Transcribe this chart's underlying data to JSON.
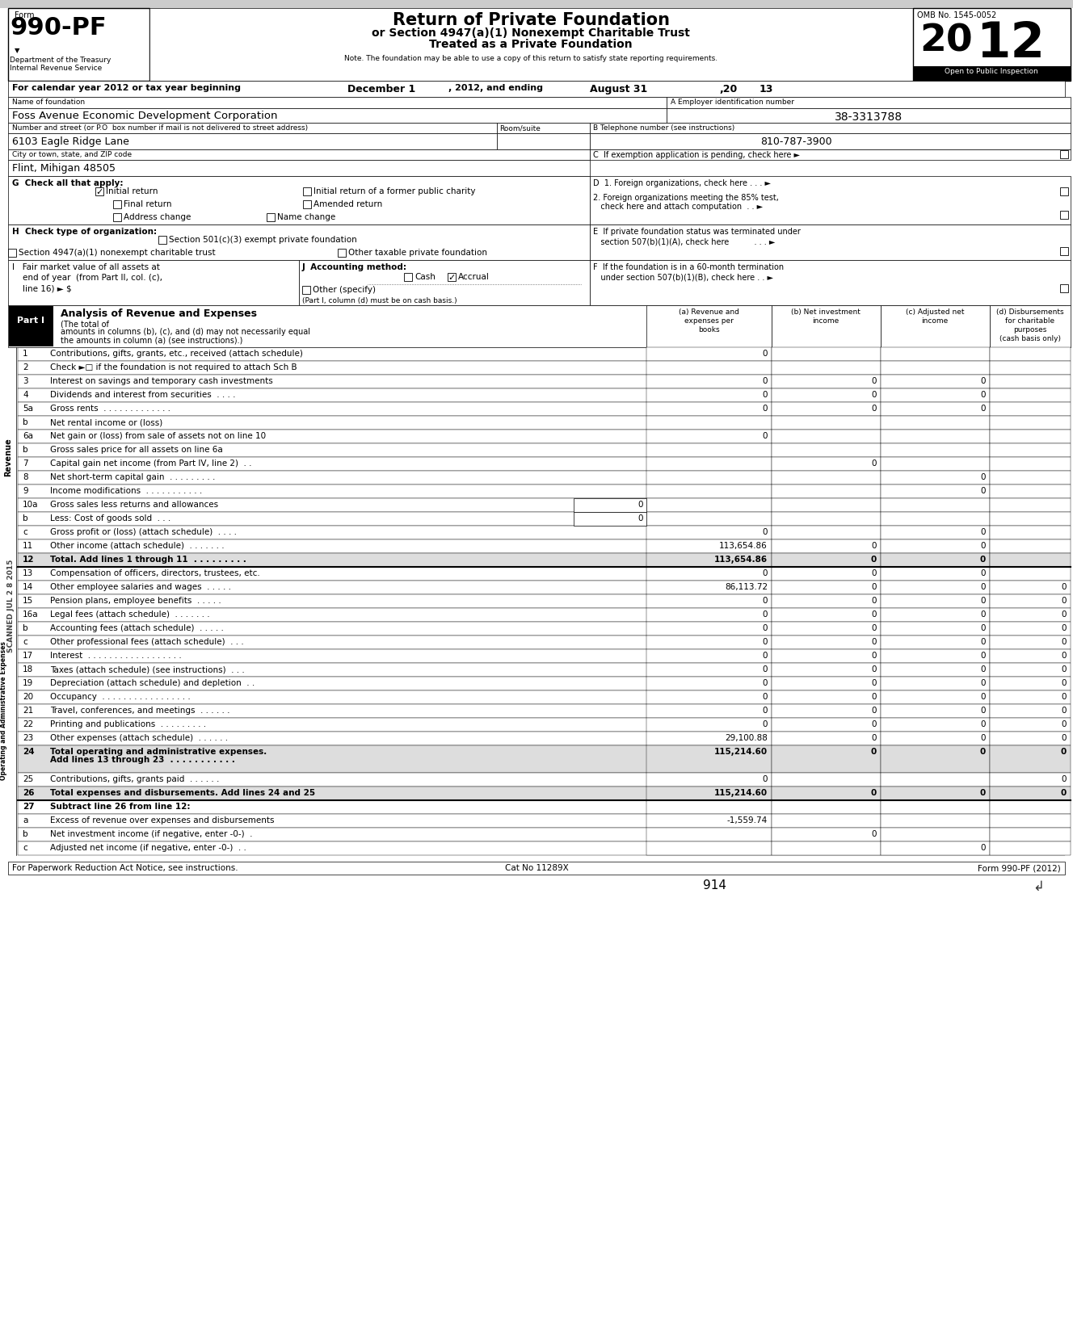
{
  "title": "Return of Private Foundation",
  "subtitle1": "or Section 4947(a)(1) Nonexempt Charitable Trust",
  "subtitle2": "Treated as a Private Foundation",
  "form_number": "990-PF",
  "omb": "OMB No. 1545-0052",
  "open_to_public": "Open to Public Inspection",
  "dept1": "Department of the Treasury",
  "dept2": "Internal Revenue Service",
  "note": "Note. The foundation may be able to use a copy of this return to satisfy state reporting requirements.",
  "cal_year_line": "For calendar year 2012 or tax year beginning",
  "beginning_date": "December 1",
  "ending_label": ", 2012, and ending",
  "ending_date": "August 31",
  "ending_20": ",20",
  "ending_13": "13",
  "name_label": "Name of foundation",
  "ein_label": "A Employer identification number",
  "foundation_name": "Foss Avenue Economic Development Corporation",
  "ein": "38-3313788",
  "street_label": "Number and street (or P.O  box number if mail is not delivered to street address)",
  "room_label": "Room/suite",
  "phone_label": "B Telephone number (see instructions)",
  "street": "6103 Eagle Ridge Lane",
  "phone": "810-787-3900",
  "city_label": "City or town, state, and ZIP code",
  "city": "Flint, Mihigan 48505",
  "c_label": "C  If exemption application is pending, check here ►",
  "g_label": "G  Check all that apply:",
  "initial_return": "Initial return",
  "former_charity": "Initial return of a former public charity",
  "final_return": "Final return",
  "amended_return": "Amended return",
  "address_change": "Address change",
  "name_change": "Name change",
  "d1_label": "D  1. Foreign organizations, check here . . . ►",
  "d2a": "2. Foreign organizations meeting the 85% test,",
  "d2b": "   check here and attach computation  . . ►",
  "h_label": "H  Check type of organization:",
  "h_501c3": "Section 501(c)(3) exempt private foundation",
  "h_4947": "Section 4947(a)(1) nonexempt charitable trust",
  "h_other": "Other taxable private foundation",
  "e_label1": "E  If private foundation status was terminated under",
  "e_label2": "   section 507(b)(1)(A), check here          . . . ►",
  "f_label1": "F  If the foundation is in a 60-month termination",
  "f_label2": "   under section 507(b)(1)(B), check here . . ►",
  "i_label1": "I   Fair market value of all assets at",
  "i_label2": "    end of year  (from Part II, col. (c),",
  "i_label3": "    line 16) ► $",
  "j_label": "J  Accounting method:",
  "j_cash": "Cash",
  "j_accrual": "Accrual",
  "j_other": "Other (specify)",
  "j_note": "(Part I, column (d) must be on cash basis.)",
  "part1_label": "Part I",
  "part1_title": "Analysis of Revenue and Expenses",
  "part1_desc1": "(The total of",
  "part1_desc2": "amounts in columns (b), (c), and (d) may not necessarily equal",
  "part1_desc3": "the amounts in column (a) (see instructions).)",
  "col_a_lines": [
    "(a) Revenue and",
    "expenses per",
    "books"
  ],
  "col_b_lines": [
    "(b) Net investment",
    "income"
  ],
  "col_c_lines": [
    "(c) Adjusted net",
    "income"
  ],
  "col_d_lines": [
    "(d) Disbursements",
    "for charitable",
    "purposes",
    "(cash basis only)"
  ],
  "rows": [
    {
      "num": "1",
      "label": "Contributions, gifts, grants, etc., received (attach schedule)",
      "a": "0",
      "b": "",
      "c": "",
      "d": ""
    },
    {
      "num": "2",
      "label": "Check ►□ if the foundation is not required to attach Sch B",
      "a": "",
      "b": "",
      "c": "",
      "d": ""
    },
    {
      "num": "3",
      "label": "Interest on savings and temporary cash investments",
      "a": "0",
      "b": "0",
      "c": "0",
      "d": ""
    },
    {
      "num": "4",
      "label": "Dividends and interest from securities  . . . .",
      "a": "0",
      "b": "0",
      "c": "0",
      "d": ""
    },
    {
      "num": "5a",
      "label": "Gross rents  . . . . . . . . . . . . .",
      "a": "0",
      "b": "0",
      "c": "0",
      "d": ""
    },
    {
      "num": "b",
      "label": "Net rental income or (loss)",
      "a": "",
      "b": "",
      "c": "",
      "d": ""
    },
    {
      "num": "6a",
      "label": "Net gain or (loss) from sale of assets not on line 10",
      "a": "0",
      "b": "",
      "c": "",
      "d": ""
    },
    {
      "num": "b",
      "label": "Gross sales price for all assets on line 6a",
      "a": "",
      "b": "",
      "c": "",
      "d": ""
    },
    {
      "num": "7",
      "label": "Capital gain net income (from Part IV, line 2)  . .",
      "a": "",
      "b": "0",
      "c": "",
      "d": ""
    },
    {
      "num": "8",
      "label": "Net short-term capital gain  . . . . . . . . .",
      "a": "",
      "b": "",
      "c": "0",
      "d": ""
    },
    {
      "num": "9",
      "label": "Income modifications  . . . . . . . . . . .",
      "a": "",
      "b": "",
      "c": "0",
      "d": ""
    },
    {
      "num": "10a",
      "label": "Gross sales less returns and allowances",
      "a_inline": "0",
      "a": "",
      "b": "",
      "c": "",
      "d": ""
    },
    {
      "num": "b",
      "label": "Less: Cost of goods sold  . . .",
      "a_inline": "0",
      "a": "",
      "b": "",
      "c": "",
      "d": ""
    },
    {
      "num": "c",
      "label": "Gross profit or (loss) (attach schedule)  . . . .",
      "a": "0",
      "b": "",
      "c": "0",
      "d": ""
    },
    {
      "num": "11",
      "label": "Other income (attach schedule)  . . . . . . .",
      "a": "113,654.86",
      "b": "0",
      "c": "0",
      "d": ""
    },
    {
      "num": "12",
      "label": "Total. Add lines 1 through 11  . . . . . . . . .",
      "a": "113,654.86",
      "b": "0",
      "c": "0",
      "d": "",
      "bold": true
    },
    {
      "num": "13",
      "label": "Compensation of officers, directors, trustees, etc.",
      "a": "0",
      "b": "0",
      "c": "0",
      "d": ""
    },
    {
      "num": "14",
      "label": "Other employee salaries and wages  . . . . .",
      "a": "86,113.72",
      "b": "0",
      "c": "0",
      "d": "0"
    },
    {
      "num": "15",
      "label": "Pension plans, employee benefits  . . . . .",
      "a": "0",
      "b": "0",
      "c": "0",
      "d": "0"
    },
    {
      "num": "16a",
      "label": "Legal fees (attach schedule)  . . . . . . .",
      "a": "0",
      "b": "0",
      "c": "0",
      "d": "0"
    },
    {
      "num": "b",
      "label": "Accounting fees (attach schedule)  . . . . .",
      "a": "0",
      "b": "0",
      "c": "0",
      "d": "0"
    },
    {
      "num": "c",
      "label": "Other professional fees (attach schedule)  . . .",
      "a": "0",
      "b": "0",
      "c": "0",
      "d": "0"
    },
    {
      "num": "17",
      "label": "Interest  . . . . . . . . . . . . . . . . . .",
      "a": "0",
      "b": "0",
      "c": "0",
      "d": "0"
    },
    {
      "num": "18",
      "label": "Taxes (attach schedule) (see instructions)  . . .",
      "a": "0",
      "b": "0",
      "c": "0",
      "d": "0"
    },
    {
      "num": "19",
      "label": "Depreciation (attach schedule) and depletion  . .",
      "a": "0",
      "b": "0",
      "c": "0",
      "d": "0"
    },
    {
      "num": "20",
      "label": "Occupancy  . . . . . . . . . . . . . . . . .",
      "a": "0",
      "b": "0",
      "c": "0",
      "d": "0"
    },
    {
      "num": "21",
      "label": "Travel, conferences, and meetings  . . . . . .",
      "a": "0",
      "b": "0",
      "c": "0",
      "d": "0"
    },
    {
      "num": "22",
      "label": "Printing and publications  . . . . . . . . .",
      "a": "0",
      "b": "0",
      "c": "0",
      "d": "0"
    },
    {
      "num": "23",
      "label": "Other expenses (attach schedule)  . . . . . .",
      "a": "29,100.88",
      "b": "0",
      "c": "0",
      "d": "0"
    },
    {
      "num": "24",
      "label1": "Total operating and administrative expenses.",
      "label2": "Add lines 13 through 23  . . . . . . . . . . .",
      "a": "115,214.60",
      "b": "0",
      "c": "0",
      "d": "0",
      "bold": true,
      "two_line": true
    },
    {
      "num": "25",
      "label": "Contributions, gifts, grants paid  . . . . . .",
      "a": "0",
      "b": "",
      "c": "",
      "d": "0"
    },
    {
      "num": "26",
      "label": "Total expenses and disbursements. Add lines 24 and 25",
      "a": "115,214.60",
      "b": "0",
      "c": "0",
      "d": "0",
      "bold": true
    },
    {
      "num": "27",
      "label": "Subtract line 26 from line 12:",
      "a": "",
      "b": "",
      "c": "",
      "d": "",
      "bold": true
    },
    {
      "num": "a",
      "label": "Excess of revenue over expenses and disbursements",
      "a": "-1,559.74",
      "b": "",
      "c": "",
      "d": ""
    },
    {
      "num": "b",
      "label": "Net investment income (if negative, enter -0-)  .",
      "a": "",
      "b": "0",
      "c": "",
      "d": ""
    },
    {
      "num": "c",
      "label": "Adjusted net income (if negative, enter -0-)  . .",
      "a": "",
      "b": "",
      "c": "0",
      "d": ""
    }
  ],
  "revenue_row_count": 16,
  "footer1": "For Paperwork Reduction Act Notice, see instructions.",
  "footer2": "Cat No 11289X",
  "footer3": "Form 990-PF (2012)",
  "page_num": "914",
  "scanned_text": "SCANNED JUL 2 8 2015"
}
